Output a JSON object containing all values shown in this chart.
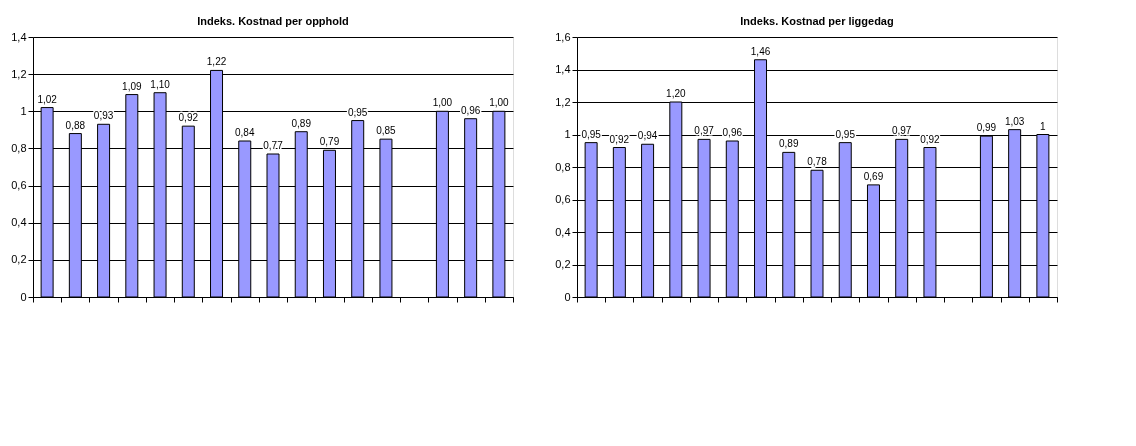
{
  "chart_data": [
    {
      "type": "bar",
      "title": "Indeks. Kostnad per opphold",
      "categories": [
        null,
        null,
        null,
        null,
        null,
        null,
        null,
        null,
        null,
        null,
        null,
        null,
        null,
        null,
        null,
        null,
        null
      ],
      "series": [
        {
          "color": "#9999ff",
          "values": [
            1.02,
            0.88,
            0.93,
            1.09,
            1.1,
            0.92,
            1.22,
            0.84,
            0.77,
            0.89,
            0.79,
            0.95,
            0.85,
            null,
            1.0,
            0.96,
            1.0
          ],
          "value_labels": [
            "1,02",
            "0,88",
            "0,93",
            "1,09",
            "1,10",
            "0,92",
            "1,22",
            "0,84",
            "0,77",
            "0,89",
            "0,79",
            "0,95",
            "0,85",
            null,
            "1,00",
            "0,96",
            "1,00"
          ]
        }
      ],
      "ylim": [
        0,
        1.4
      ],
      "yticks": [
        0,
        {
          "value": 0.2,
          "label": "0,2"
        },
        {
          "value": 0.4,
          "label": "0,4"
        },
        {
          "value": 0.6,
          "label": "0,6"
        },
        {
          "value": 0.8,
          "label": "0,8"
        },
        1,
        {
          "value": 1.2,
          "label": "1,2"
        },
        {
          "value": 1.4,
          "label": "1,4"
        }
      ],
      "grid": "y",
      "legend": false,
      "tick_labels": "y"
    },
    {
      "type": "bar",
      "title": "Indeks. Kostnad per liggedag",
      "categories": [
        null,
        null,
        null,
        null,
        null,
        null,
        null,
        null,
        null,
        null,
        null,
        null,
        null,
        null,
        null,
        null,
        null
      ],
      "series": [
        {
          "color": "#9999ff",
          "values": [
            0.95,
            0.92,
            0.94,
            1.2,
            0.97,
            0.96,
            1.46,
            0.89,
            0.78,
            0.95,
            0.69,
            0.97,
            0.92,
            null,
            0.99,
            1.03,
            1
          ],
          "value_labels": [
            "0,95",
            "0,92",
            "0,94",
            "1,20",
            "0,97",
            "0,96",
            "1,46",
            "0,89",
            "0,78",
            "0,95",
            "0,69",
            "0,97",
            "0,92",
            null,
            "0,99",
            "1,03",
            "1"
          ]
        }
      ],
      "ylim": [
        0,
        1.6
      ],
      "yticks": [
        0,
        {
          "value": 0.2,
          "label": "0,2"
        },
        {
          "value": 0.4,
          "label": "0,4"
        },
        {
          "value": 0.6,
          "label": "0,6"
        },
        {
          "value": 0.8,
          "label": "0,8"
        },
        1,
        {
          "value": 1.2,
          "label": "1,2"
        },
        {
          "value": 1.4,
          "label": "1,4"
        },
        {
          "value": 1.6,
          "label": "1,6"
        }
      ],
      "grid": "y",
      "legend": false,
      "tick_labels": "y"
    }
  ]
}
